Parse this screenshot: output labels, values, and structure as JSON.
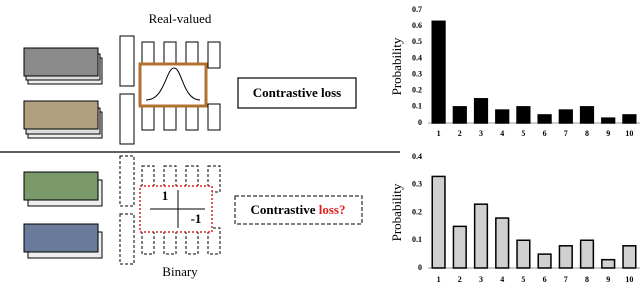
{
  "diagram": {
    "top_label": "Real-valued",
    "top_loss": "Contrastive loss",
    "bottom_label": "Binary",
    "bottom_loss_prefix": "Contrastive ",
    "bottom_loss_suffix": "loss?",
    "matrix": [
      "1",
      "-1"
    ]
  },
  "chart_data": [
    {
      "type": "bar",
      "y_label": "Probability",
      "categories": [
        "1",
        "2",
        "3",
        "4",
        "5",
        "6",
        "7",
        "8",
        "9",
        "10"
      ],
      "values": [
        0.63,
        0.1,
        0.15,
        0.08,
        0.1,
        0.05,
        0.08,
        0.1,
        0.03,
        0.05
      ],
      "color": "#000000",
      "ylim": [
        0,
        0.7
      ],
      "yticks": [
        0,
        0.1,
        0.2,
        0.3,
        0.4,
        0.5,
        0.6,
        0.7
      ]
    },
    {
      "type": "bar",
      "y_label": "Probability",
      "categories": [
        "1",
        "2",
        "3",
        "4",
        "5",
        "6",
        "7",
        "8",
        "9",
        "10"
      ],
      "values": [
        0.33,
        0.15,
        0.23,
        0.18,
        0.1,
        0.05,
        0.08,
        0.1,
        0.03,
        0.08
      ],
      "color": "#d0d0d0",
      "ylim": [
        0,
        0.4
      ],
      "yticks": [
        0,
        0.1,
        0.2,
        0.3,
        0.4
      ]
    }
  ]
}
